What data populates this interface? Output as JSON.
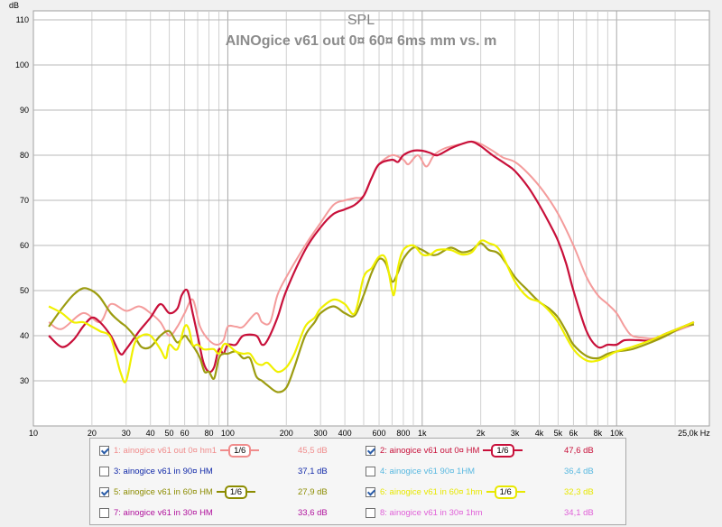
{
  "chart_data": {
    "type": "line",
    "title": "SPL",
    "subtitle": "AINOgice v61 out 0¤ 60¤ 6ms mm vs. m",
    "ylabel": "dB",
    "xscale": "log",
    "xlim": [
      10,
      30000
    ],
    "ylim": [
      20,
      112
    ],
    "grid": true,
    "y_ticks": [
      "110",
      "100",
      "90",
      "80",
      "70",
      "60",
      "50",
      "40",
      "30"
    ],
    "x_tick_labels": [
      {
        "v": 10,
        "t": "10"
      },
      {
        "v": 20,
        "t": "20"
      },
      {
        "v": 30,
        "t": "30"
      },
      {
        "v": 40,
        "t": "40"
      },
      {
        "v": 50,
        "t": "50"
      },
      {
        "v": 60,
        "t": "60"
      },
      {
        "v": 80,
        "t": "80"
      },
      {
        "v": 100,
        "t": "100"
      },
      {
        "v": 200,
        "t": "200"
      },
      {
        "v": 300,
        "t": "300"
      },
      {
        "v": 400,
        "t": "400"
      },
      {
        "v": 600,
        "t": "600"
      },
      {
        "v": 800,
        "t": "800"
      },
      {
        "v": 1000,
        "t": "1k"
      },
      {
        "v": 2000,
        "t": "2k"
      },
      {
        "v": 3000,
        "t": "3k"
      },
      {
        "v": 4000,
        "t": "4k"
      },
      {
        "v": 5000,
        "t": "5k"
      },
      {
        "v": 6000,
        "t": "6k"
      },
      {
        "v": 8000,
        "t": "8k"
      },
      {
        "v": 10000,
        "t": "10k"
      },
      {
        "v": 25000,
        "t": "25,0k Hz"
      }
    ],
    "series": [
      {
        "name": "1: ainogice v61 out 0¤ hm1",
        "color": "#f49c9c",
        "width": 2,
        "points": [
          [
            12,
            43
          ],
          [
            14,
            41.5
          ],
          [
            18,
            45
          ],
          [
            22,
            43
          ],
          [
            25,
            47
          ],
          [
            30,
            45.5
          ],
          [
            35,
            46.5
          ],
          [
            40,
            45
          ],
          [
            45,
            43
          ],
          [
            50,
            40
          ],
          [
            55,
            42
          ],
          [
            60,
            45
          ],
          [
            66,
            48
          ],
          [
            72,
            42
          ],
          [
            80,
            39
          ],
          [
            88,
            38
          ],
          [
            95,
            39
          ],
          [
            100,
            42
          ],
          [
            110,
            42
          ],
          [
            120,
            42
          ],
          [
            140,
            45
          ],
          [
            150,
            43
          ],
          [
            165,
            43
          ],
          [
            180,
            49
          ],
          [
            200,
            53
          ],
          [
            250,
            60
          ],
          [
            300,
            65
          ],
          [
            350,
            69
          ],
          [
            400,
            70
          ],
          [
            450,
            70.5
          ],
          [
            500,
            71
          ],
          [
            550,
            75
          ],
          [
            600,
            78
          ],
          [
            700,
            80
          ],
          [
            800,
            79
          ],
          [
            850,
            78
          ],
          [
            950,
            80
          ],
          [
            1050,
            77.5
          ],
          [
            1150,
            80
          ],
          [
            1300,
            81.5
          ],
          [
            1600,
            82.5
          ],
          [
            1800,
            83
          ],
          [
            2000,
            82.5
          ],
          [
            2300,
            81
          ],
          [
            2600,
            79.5
          ],
          [
            3000,
            78.5
          ],
          [
            3500,
            76
          ],
          [
            4200,
            72
          ],
          [
            5000,
            67
          ],
          [
            6000,
            60
          ],
          [
            7000,
            53
          ],
          [
            8000,
            49
          ],
          [
            9000,
            47
          ],
          [
            10000,
            45
          ],
          [
            11000,
            42
          ],
          [
            12000,
            40
          ],
          [
            14000,
            39.5
          ],
          [
            16000,
            39.5
          ],
          [
            20000,
            41
          ],
          [
            25000,
            42.5
          ]
        ]
      },
      {
        "name": "2: ainogice v61 out 0¤ HM",
        "color": "#c8103a",
        "width": 2.2,
        "points": [
          [
            12,
            40
          ],
          [
            14,
            37.5
          ],
          [
            16,
            39
          ],
          [
            18,
            42
          ],
          [
            20,
            44
          ],
          [
            22,
            43
          ],
          [
            25,
            40
          ],
          [
            28,
            36
          ],
          [
            30,
            37
          ],
          [
            35,
            41
          ],
          [
            40,
            44
          ],
          [
            45,
            47
          ],
          [
            50,
            45
          ],
          [
            55,
            46
          ],
          [
            58,
            49
          ],
          [
            62,
            50
          ],
          [
            66,
            45
          ],
          [
            70,
            40
          ],
          [
            75,
            34
          ],
          [
            80,
            32
          ],
          [
            85,
            33
          ],
          [
            90,
            37
          ],
          [
            95,
            36
          ],
          [
            100,
            38
          ],
          [
            110,
            38
          ],
          [
            120,
            40
          ],
          [
            140,
            40
          ],
          [
            150,
            38
          ],
          [
            160,
            39
          ],
          [
            180,
            44
          ],
          [
            200,
            50
          ],
          [
            250,
            59
          ],
          [
            300,
            64
          ],
          [
            350,
            67
          ],
          [
            400,
            68
          ],
          [
            450,
            69
          ],
          [
            500,
            71
          ],
          [
            550,
            75
          ],
          [
            600,
            78
          ],
          [
            700,
            79
          ],
          [
            750,
            78.5
          ],
          [
            800,
            80
          ],
          [
            900,
            81
          ],
          [
            1000,
            81
          ],
          [
            1100,
            80.5
          ],
          [
            1200,
            80
          ],
          [
            1400,
            81.5
          ],
          [
            1600,
            82.5
          ],
          [
            1800,
            83
          ],
          [
            2000,
            82
          ],
          [
            2300,
            80
          ],
          [
            2700,
            78
          ],
          [
            3000,
            76.5
          ],
          [
            3500,
            73
          ],
          [
            4000,
            69
          ],
          [
            4500,
            65
          ],
          [
            5000,
            61
          ],
          [
            5500,
            56
          ],
          [
            6000,
            50
          ],
          [
            7000,
            41
          ],
          [
            8000,
            37.5
          ],
          [
            9000,
            38
          ],
          [
            10000,
            38
          ],
          [
            11000,
            39
          ],
          [
            13000,
            39
          ],
          [
            15000,
            39
          ],
          [
            18000,
            40.5
          ],
          [
            22000,
            42
          ],
          [
            25000,
            43
          ]
        ]
      },
      {
        "name": "5: ainogice v61 in 60¤ HM",
        "color": "#9c9c10",
        "width": 2.2,
        "points": [
          [
            12,
            42
          ],
          [
            14,
            46
          ],
          [
            16,
            49
          ],
          [
            18,
            50.5
          ],
          [
            20,
            50
          ],
          [
            22,
            48.5
          ],
          [
            25,
            45
          ],
          [
            28,
            43
          ],
          [
            30,
            42
          ],
          [
            33,
            40
          ],
          [
            36,
            37.5
          ],
          [
            40,
            37.5
          ],
          [
            45,
            40
          ],
          [
            50,
            41
          ],
          [
            55,
            38.5
          ],
          [
            60,
            40
          ],
          [
            63,
            39
          ],
          [
            68,
            37
          ],
          [
            72,
            35
          ],
          [
            76,
            32
          ],
          [
            80,
            32
          ],
          [
            85,
            30.5
          ],
          [
            90,
            35
          ],
          [
            95,
            36
          ],
          [
            100,
            36
          ],
          [
            110,
            36.5
          ],
          [
            120,
            35
          ],
          [
            130,
            35
          ],
          [
            140,
            31
          ],
          [
            150,
            30
          ],
          [
            160,
            29
          ],
          [
            180,
            27.5
          ],
          [
            200,
            28.5
          ],
          [
            220,
            33
          ],
          [
            250,
            40
          ],
          [
            280,
            43
          ],
          [
            300,
            45
          ],
          [
            350,
            46.5
          ],
          [
            400,
            45
          ],
          [
            450,
            44.5
          ],
          [
            500,
            49
          ],
          [
            550,
            54
          ],
          [
            600,
            57
          ],
          [
            650,
            56
          ],
          [
            700,
            52
          ],
          [
            750,
            54
          ],
          [
            800,
            57
          ],
          [
            900,
            59.5
          ],
          [
            1000,
            59
          ],
          [
            1100,
            58
          ],
          [
            1200,
            58
          ],
          [
            1400,
            59.5
          ],
          [
            1600,
            58.5
          ],
          [
            1800,
            59
          ],
          [
            2000,
            60.5
          ],
          [
            2200,
            59
          ],
          [
            2500,
            58
          ],
          [
            3000,
            53
          ],
          [
            3500,
            50
          ],
          [
            4000,
            47.5
          ],
          [
            4500,
            46
          ],
          [
            5000,
            44
          ],
          [
            5500,
            41
          ],
          [
            6000,
            38
          ],
          [
            7000,
            35.5
          ],
          [
            8000,
            35
          ],
          [
            9000,
            36
          ],
          [
            10000,
            36.5
          ],
          [
            12000,
            37
          ],
          [
            15000,
            38.5
          ],
          [
            18000,
            40
          ],
          [
            22000,
            42
          ],
          [
            25000,
            42.5
          ]
        ]
      },
      {
        "name": "6: ainogice v61 in 60¤ 1hm",
        "color": "#f0f000",
        "width": 2.2,
        "points": [
          [
            12,
            46.5
          ],
          [
            14,
            45
          ],
          [
            16,
            43
          ],
          [
            18,
            43
          ],
          [
            20,
            42
          ],
          [
            22,
            41
          ],
          [
            25,
            39.5
          ],
          [
            28,
            32
          ],
          [
            30,
            30
          ],
          [
            33,
            38
          ],
          [
            36,
            40
          ],
          [
            40,
            40
          ],
          [
            45,
            37
          ],
          [
            48,
            35
          ],
          [
            50,
            38
          ],
          [
            55,
            37
          ],
          [
            60,
            42
          ],
          [
            63,
            41.5
          ],
          [
            66,
            38
          ],
          [
            70,
            38
          ],
          [
            75,
            37
          ],
          [
            80,
            37
          ],
          [
            85,
            37
          ],
          [
            90,
            36
          ],
          [
            95,
            38
          ],
          [
            100,
            38
          ],
          [
            110,
            36.5
          ],
          [
            120,
            36
          ],
          [
            130,
            36
          ],
          [
            140,
            34
          ],
          [
            150,
            33.5
          ],
          [
            160,
            34
          ],
          [
            180,
            32
          ],
          [
            200,
            33
          ],
          [
            220,
            36
          ],
          [
            250,
            42
          ],
          [
            280,
            44
          ],
          [
            300,
            46
          ],
          [
            350,
            48
          ],
          [
            400,
            47
          ],
          [
            450,
            45
          ],
          [
            500,
            53
          ],
          [
            550,
            55
          ],
          [
            600,
            57.5
          ],
          [
            650,
            57
          ],
          [
            700,
            50
          ],
          [
            720,
            49.5
          ],
          [
            750,
            55
          ],
          [
            800,
            59
          ],
          [
            900,
            60
          ],
          [
            1000,
            58
          ],
          [
            1100,
            58
          ],
          [
            1200,
            59
          ],
          [
            1400,
            59
          ],
          [
            1600,
            58
          ],
          [
            1800,
            58.5
          ],
          [
            2000,
            61
          ],
          [
            2200,
            60.5
          ],
          [
            2500,
            59
          ],
          [
            3000,
            52
          ],
          [
            3500,
            48.5
          ],
          [
            4000,
            47.5
          ],
          [
            4500,
            45.5
          ],
          [
            5000,
            43
          ],
          [
            6000,
            37
          ],
          [
            7000,
            34.5
          ],
          [
            8000,
            34.5
          ],
          [
            9000,
            35.5
          ],
          [
            10000,
            36.5
          ],
          [
            12000,
            37.5
          ],
          [
            15000,
            39
          ],
          [
            18000,
            40.5
          ],
          [
            22000,
            42
          ],
          [
            25000,
            43
          ]
        ]
      }
    ]
  },
  "legend": [
    {
      "checked": true,
      "label": "1: ainogice v61 out 0¤ hm1",
      "smooth": "1/6",
      "value": "45,5 dB",
      "color": "#f08c8c"
    },
    {
      "checked": true,
      "label": "2: ainogice v61 out 0¤ HM",
      "smooth": "1/6",
      "value": "47,6 dB",
      "color": "#c8103a"
    },
    {
      "checked": false,
      "label": "3: ainogice v61 in 90¤ HM",
      "smooth": "",
      "value": "37,1 dB",
      "color": "#1028a8"
    },
    {
      "checked": false,
      "label": "4: ainogice v61 90¤ 1HM",
      "smooth": "",
      "value": "36,4 dB",
      "color": "#58b8e0"
    },
    {
      "checked": true,
      "label": "5: ainogice v61 in 60¤ HM",
      "smooth": "1/6",
      "value": "27,9 dB",
      "color": "#8c8c00"
    },
    {
      "checked": true,
      "label": "6: ainogice v61 in 60¤ 1hm",
      "smooth": "1/6",
      "value": "32,3 dB",
      "color": "#e8e800"
    },
    {
      "checked": false,
      "label": "7: ainogice v61 in 30¤ HM",
      "smooth": "",
      "value": "33,6 dB",
      "color": "#b0109c"
    },
    {
      "checked": false,
      "label": "8: ainogice v61 in 30¤ 1hm",
      "smooth": "",
      "value": "34,1 dB",
      "color": "#e060d8"
    }
  ]
}
